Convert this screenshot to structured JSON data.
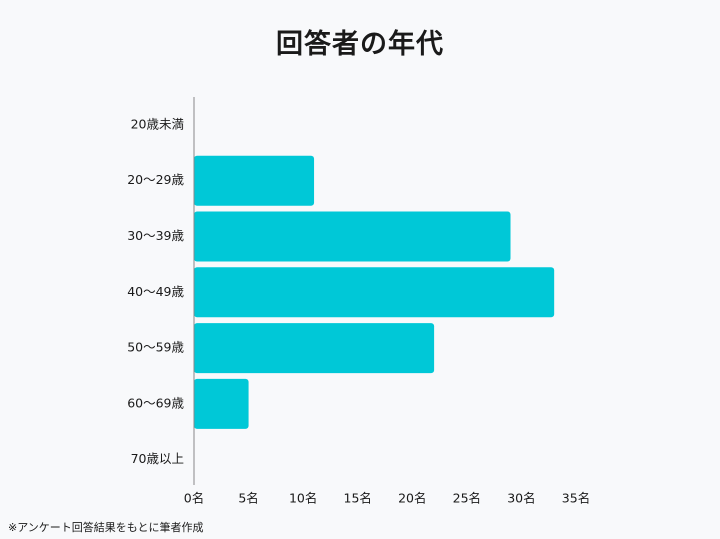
{
  "title": "回答者の年代",
  "footnote": "※アンケート回答結果をもとに筆者作成",
  "chart_data": {
    "type": "bar",
    "orientation": "horizontal",
    "title": "回答者の年代",
    "xlabel": "",
    "ylabel": "",
    "categories": [
      "20歳未満",
      "20〜29歳",
      "30〜39歳",
      "40〜49歳",
      "50〜59歳",
      "60〜69歳",
      "70歳以上"
    ],
    "values": [
      0,
      11,
      29,
      33,
      22,
      5,
      0
    ],
    "xlim": [
      0,
      35
    ],
    "x_ticks": [
      0,
      5,
      10,
      15,
      20,
      25,
      30,
      35
    ],
    "x_tick_labels": [
      "0名",
      "5名",
      "10名",
      "15名",
      "20名",
      "25名",
      "30名",
      "35名"
    ],
    "grid": false,
    "legend": "none",
    "bar_color": "#00c8d7",
    "axis_color": "#888888"
  }
}
